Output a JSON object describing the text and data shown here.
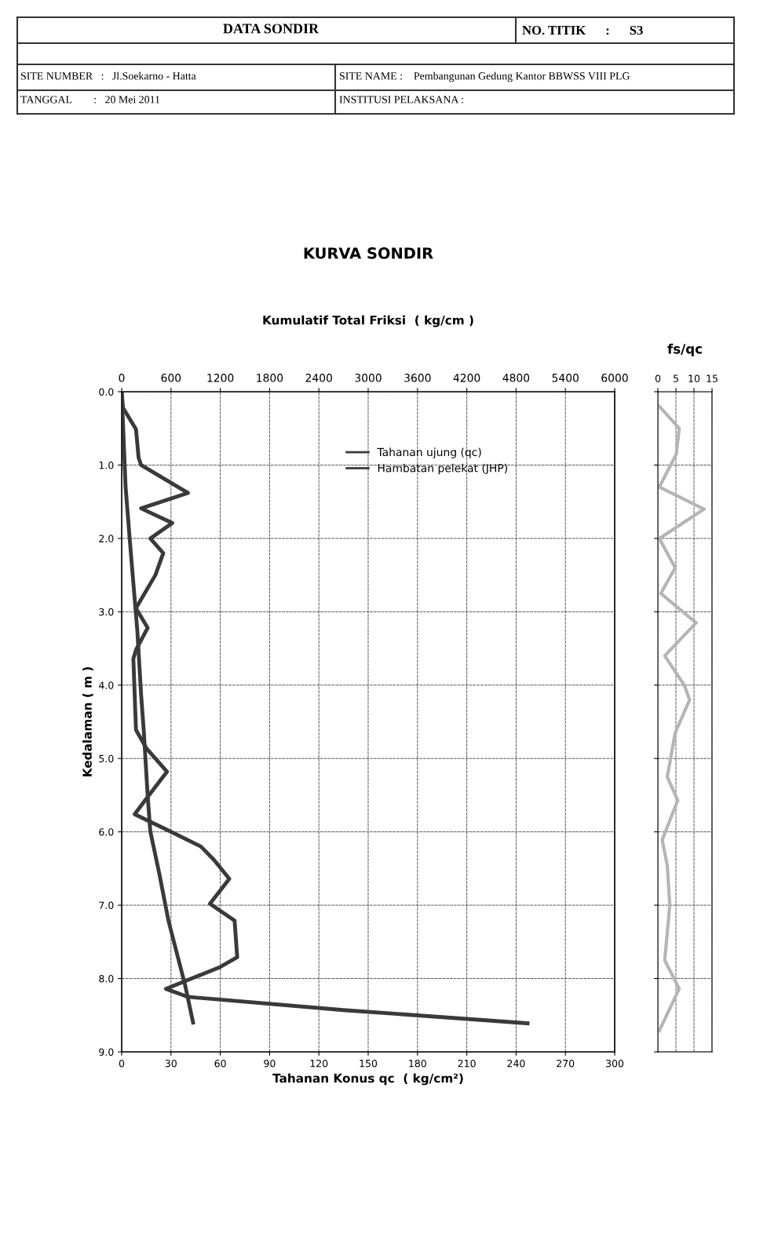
{
  "chart_data": [
    {
      "type": "line",
      "title": "KURVA SONDIR",
      "xlabel": "Tahanan Konus qc  ( kg/cm²)",
      "x2label": "Kumulatif Total Friksi  ( kg/cm )",
      "ylabel": "Kedalaman ( m )",
      "annotations": [
        "DATA SONDIR",
        "NO. TITIK      :      S3",
        "SITE NUMBER   :   Jl.Soekarno - Hatta",
        "SITE NAME :    Pembangunan Gedung Kantor BBWSS VIII PLG",
        "TANGGAL        :   20 Mei 2011",
        "INSTITUSI PELAKSANA :"
      ],
      "series": [
        {
          "name": "Tahanan ujung (qc)",
          "color": "#3a3a3a",
          "x": [
            0,
            0.8,
            8.7,
            10.3,
            11.8,
            40.3,
            11.8,
            30.8,
            17.4,
            25.3,
            20.5,
            8.7,
            15.8,
            8.7,
            7.1,
            8.7,
            15.0,
            27.6,
            16.6,
            7.9,
            29.2,
            48.2,
            56.1,
            65.5,
            53.7,
            68.7,
            70.3,
            59.2,
            26.9,
            40.3,
            135,
            247
          ],
          "values": [
            0,
            0.22,
            0.51,
            0.9,
            1.0,
            1.38,
            1.59,
            1.79,
            2.0,
            2.2,
            2.5,
            2.95,
            3.22,
            3.52,
            3.64,
            4.61,
            4.86,
            5.18,
            5.5,
            5.76,
            5.99,
            6.2,
            6.38,
            6.64,
            6.98,
            7.21,
            7.71,
            7.85,
            8.14,
            8.25,
            8.43,
            8.61
          ]
        },
        {
          "name": "Hambatan pelekat (JHP)",
          "color": "#3a3a3a",
          "axis": "x2",
          "x": [
            0,
            47,
            95,
            142,
            190,
            237,
            268,
            316,
            348,
            458,
            569,
            774,
            869
          ],
          "values": [
            0,
            1.29,
            1.97,
            2.61,
            3.25,
            4.14,
            4.61,
            5.5,
            5.99,
            6.57,
            7.21,
            8.1,
            8.6
          ]
        }
      ],
      "ylim": [
        9,
        0
      ],
      "yticks": [
        {
          "value": 0,
          "label": "0.0"
        },
        {
          "value": 1,
          "label": "1.0"
        },
        {
          "value": 2,
          "label": "2.0"
        },
        {
          "value": 3,
          "label": "3.0"
        },
        {
          "value": 4,
          "label": "4.0"
        },
        {
          "value": 5,
          "label": "5.0"
        },
        {
          "value": 6,
          "label": "6.0"
        },
        {
          "value": 7,
          "label": "7.0"
        },
        {
          "value": 8,
          "label": "8.0"
        },
        {
          "value": 9,
          "label": "9.0"
        }
      ],
      "xlim": [
        0,
        300
      ],
      "xticks": [
        0,
        30,
        60,
        90,
        120,
        150,
        180,
        210,
        240,
        270,
        300
      ],
      "x2lim": [
        0,
        6000
      ],
      "x2ticks": [
        0,
        600,
        1200,
        1800,
        2400,
        3000,
        3600,
        4200,
        4800,
        5400,
        6000
      ],
      "grid": true,
      "legend": "top",
      "line_style": "solid",
      "marker": "none"
    },
    {
      "type": "line",
      "title": "fs/qc",
      "series": [
        {
          "color": "#b5b5b5",
          "x": [
            0.4,
            5.9,
            5.1,
            0.4,
            12.8,
            0.4,
            4.8,
            0.8,
            10.6,
            1.9,
            7.3,
            8.8,
            4.8,
            2.6,
            5.5,
            1.2,
            2.6,
            3.3,
            1.9,
            5.9,
            0.4
          ],
          "values": [
            0.2,
            0.5,
            0.85,
            1.3,
            1.6,
            2.0,
            2.4,
            2.75,
            3.15,
            3.6,
            4.0,
            4.2,
            4.65,
            5.25,
            5.57,
            6.11,
            6.46,
            7.0,
            7.75,
            8.14,
            8.71
          ]
        }
      ],
      "ylim": [
        9,
        0
      ],
      "yticks": [
        {
          "value": 0,
          "label": null
        },
        {
          "value": 1,
          "label": null
        },
        {
          "value": 2,
          "label": null
        },
        {
          "value": 3,
          "label": null
        },
        {
          "value": 4,
          "label": null
        },
        {
          "value": 5,
          "label": null
        },
        {
          "value": 6,
          "label": null
        },
        {
          "value": 7,
          "label": null
        },
        {
          "value": 8,
          "label": null
        },
        {
          "value": 9,
          "label": null
        }
      ],
      "xlim": [
        0,
        15
      ],
      "xticks": [
        0,
        5,
        10,
        15
      ],
      "tick_labels": "x",
      "grid": true,
      "line_style": "solid",
      "marker": "none"
    }
  ]
}
